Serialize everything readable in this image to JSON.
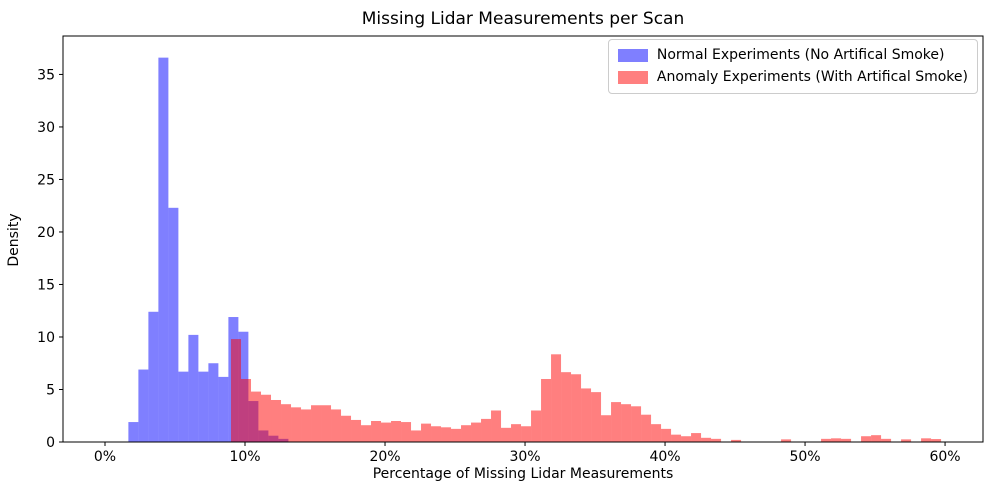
{
  "figure": {
    "title": "Missing Lidar Measurements per Scan",
    "xlabel": "Percentage of Missing Lidar Measurements",
    "ylabel": "Density"
  },
  "legend": {
    "items": [
      {
        "label": "Normal Experiments (No Artifical Smoke)",
        "color": "rgba(0,0,255,0.5)"
      },
      {
        "label": "Anomaly Experiments (With Artifical Smoke)",
        "color": "rgba(255,0,0,0.5)"
      }
    ]
  },
  "chart_data": {
    "type": "bar",
    "subtype": "overlaid-histogram",
    "title": "Missing Lidar Measurements per Scan",
    "xlabel": "Percentage of Missing Lidar Measurements",
    "ylabel": "Density",
    "xlim": [
      -3.0,
      62.71
    ],
    "ylim": [
      0,
      38.66
    ],
    "grid": false,
    "legend_position": "upper right",
    "x_ticks": [
      {
        "value": 0,
        "label": "0%"
      },
      {
        "value": 10,
        "label": "10%"
      },
      {
        "value": 20,
        "label": "20%"
      },
      {
        "value": 30,
        "label": "30%"
      },
      {
        "value": 40,
        "label": "40%"
      },
      {
        "value": 50,
        "label": "50%"
      },
      {
        "value": 60,
        "label": "60%"
      }
    ],
    "y_ticks": [
      {
        "value": 0,
        "label": "0"
      },
      {
        "value": 5,
        "label": "5"
      },
      {
        "value": 10,
        "label": "10"
      },
      {
        "value": 15,
        "label": "15"
      },
      {
        "value": 20,
        "label": "20"
      },
      {
        "value": 25,
        "label": "25"
      },
      {
        "value": 30,
        "label": "30"
      },
      {
        "value": 35,
        "label": "35"
      }
    ],
    "series": [
      {
        "name": "Normal Experiments (No Artifical Smoke)",
        "color": "rgba(0,0,255,0.5)",
        "bin_start_percent": 1.67,
        "bin_width_percent": 0.7143,
        "densities": [
          1.9,
          6.9,
          12.4,
          36.6,
          22.3,
          6.7,
          10.2,
          6.7,
          7.5,
          6.2,
          11.9,
          10.5,
          3.9,
          1.1,
          0.6,
          0.3
        ]
      },
      {
        "name": "Anomaly Experiments (With Artifical Smoke)",
        "color": "rgba(255,0,0,0.5)",
        "bin_start_percent": 9.0,
        "bin_width_percent": 0.7143,
        "densities": [
          9.8,
          6.0,
          4.8,
          4.5,
          4.0,
          3.6,
          3.3,
          3.1,
          3.5,
          3.5,
          3.1,
          2.5,
          2.1,
          1.6,
          2.0,
          1.85,
          2.0,
          1.9,
          1.1,
          1.75,
          1.5,
          1.4,
          1.25,
          1.6,
          1.85,
          2.2,
          3.0,
          1.35,
          1.7,
          1.5,
          3.0,
          6.0,
          8.35,
          6.65,
          6.45,
          5.1,
          4.75,
          2.55,
          3.8,
          3.6,
          3.4,
          2.6,
          1.7,
          1.25,
          0.7,
          0.55,
          0.85,
          0.4,
          0.3,
          0,
          0.2,
          0,
          0,
          0,
          0,
          0.25,
          0,
          0,
          0,
          0.3,
          0.35,
          0.3,
          0,
          0.55,
          0.65,
          0.3,
          0,
          0.25,
          0,
          0.35,
          0.28
        ]
      }
    ]
  }
}
